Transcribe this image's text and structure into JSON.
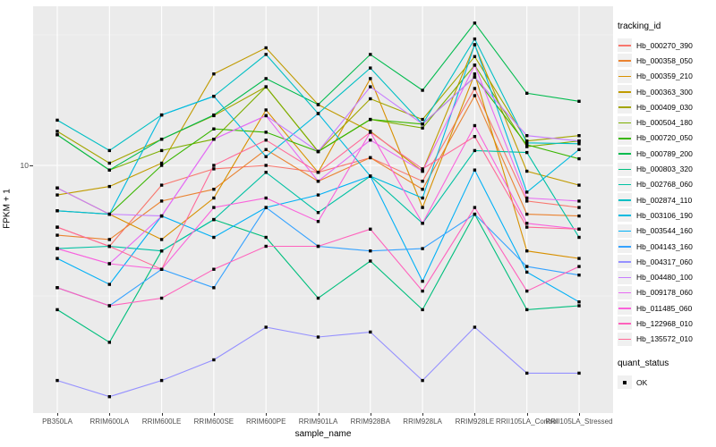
{
  "chart_data": {
    "type": "line",
    "title": "",
    "xlabel": "sample_name",
    "ylabel": "FPKM + 1",
    "y_scale": "log10",
    "ylim": [
      0.87,
      45
    ],
    "y_tick_values": [
      10
    ],
    "y_tick_labels": [
      "10"
    ],
    "y_minor_tick_values": [
      3.162,
      31.62
    ],
    "grid": "on",
    "panel_bg": "#EBEBEB",
    "grid_color": "#FFFFFF",
    "marker": {
      "shape": "square",
      "color": "#000000",
      "size": 3.4
    },
    "legend_position": "right",
    "categories": [
      "PB350LA",
      "RRIM600LA",
      "RRIM600LE",
      "RRIM600SE",
      "RRIM600PE",
      "RRIM901LA",
      "RRIM928BA",
      "RRIM928LA",
      "RRIM928LE",
      "RRII105LA_Control",
      "RRII105LA_Stressed"
    ],
    "legend_title": "tracking_id",
    "series": [
      {
        "name": "Hb_000270_390",
        "color": "#F8766D",
        "values": [
          5.8,
          4.9,
          8.4,
          9.7,
          10.0,
          9.4,
          10.7,
          8.7,
          19.7,
          7.3,
          6.9
        ]
      },
      {
        "name": "Hb_000358_050",
        "color": "#EA8331",
        "values": [
          5.4,
          5.2,
          7.3,
          8.1,
          11.5,
          8.7,
          10.7,
          8.1,
          18.5,
          6.5,
          6.4
        ]
      },
      {
        "name": "Hb_000359_210",
        "color": "#D89000",
        "values": [
          8.2,
          6.5,
          5.2,
          7.5,
          16.3,
          9.4,
          21.5,
          6.9,
          22.4,
          4.7,
          4.4
        ]
      },
      {
        "name": "Hb_000363_300",
        "color": "#C09B00",
        "values": [
          7.7,
          8.3,
          10.2,
          22.4,
          28.2,
          17.1,
          13.5,
          9.5,
          29.0,
          9.5,
          8.4
        ]
      },
      {
        "name": "Hb_000409_030",
        "color": "#A3A500",
        "values": [
          13.5,
          10.2,
          12.6,
          15.5,
          20.0,
          11.3,
          18.0,
          15.0,
          26.1,
          12.4,
          13.0
        ]
      },
      {
        "name": "Hb_000504_180",
        "color": "#7CAE00",
        "values": [
          13.1,
          9.6,
          11.4,
          12.6,
          20.0,
          11.3,
          15.0,
          13.9,
          24.2,
          11.8,
          12.4
        ]
      },
      {
        "name": "Hb_000720_050",
        "color": "#39B600",
        "values": [
          6.7,
          6.5,
          10.0,
          13.8,
          13.4,
          11.3,
          15.0,
          14.4,
          21.8,
          12.0,
          10.6
        ]
      },
      {
        "name": "Hb_000789_200",
        "color": "#00BB4E",
        "values": [
          13.1,
          9.6,
          12.6,
          15.6,
          21.5,
          17.1,
          26.6,
          19.4,
          35.1,
          18.9,
          17.6
        ]
      },
      {
        "name": "Hb_000803_320",
        "color": "#00BF7D",
        "values": [
          2.8,
          2.1,
          4.7,
          6.2,
          5.3,
          3.1,
          4.3,
          2.8,
          6.5,
          2.8,
          2.9
        ]
      },
      {
        "name": "Hb_002768_060",
        "color": "#00C1A3",
        "values": [
          4.8,
          4.9,
          4.7,
          6.2,
          9.4,
          6.6,
          9.1,
          6.0,
          11.4,
          11.2,
          5.3
        ]
      },
      {
        "name": "Hb_002874_110",
        "color": "#00BFC4",
        "values": [
          14.9,
          11.4,
          15.6,
          18.4,
          26.6,
          15.8,
          23.6,
          14.4,
          30.5,
          12.2,
          12.1
        ]
      },
      {
        "name": "Hb_003106_190",
        "color": "#00BAE0",
        "values": [
          6.7,
          6.5,
          15.6,
          18.4,
          10.8,
          15.8,
          9.1,
          7.5,
          29.0,
          7.9,
          11.5
        ]
      },
      {
        "name": "Hb_003544_160",
        "color": "#00B0F6",
        "values": [
          4.4,
          3.5,
          6.4,
          5.3,
          6.9,
          7.7,
          9.1,
          3.6,
          9.6,
          3.9,
          3.0
        ]
      },
      {
        "name": "Hb_004143_160",
        "color": "#35A2FF",
        "values": [
          3.4,
          2.9,
          4.0,
          3.4,
          6.9,
          4.9,
          4.7,
          4.8,
          6.5,
          4.1,
          3.8
        ]
      },
      {
        "name": "Hb_004317_060",
        "color": "#9590FF",
        "values": [
          1.5,
          1.3,
          1.5,
          1.8,
          2.4,
          2.2,
          2.3,
          1.5,
          2.4,
          1.6,
          1.6
        ]
      },
      {
        "name": "Hb_004480_100",
        "color": "#C77CFF",
        "values": [
          8.2,
          6.5,
          6.4,
          12.6,
          15.5,
          11.3,
          20.0,
          14.4,
          21.8,
          13.0,
          12.4
        ]
      },
      {
        "name": "Hb_009178_060",
        "color": "#E76BF3",
        "values": [
          4.8,
          4.2,
          6.4,
          12.6,
          15.5,
          8.7,
          12.5,
          9.5,
          24.2,
          7.5,
          7.3
        ]
      },
      {
        "name": "Hb_011485_060",
        "color": "#FA62DB",
        "values": [
          4.8,
          4.2,
          4.0,
          6.9,
          7.5,
          6.1,
          13.4,
          6.0,
          14.2,
          6.0,
          5.7
        ]
      },
      {
        "name": "Hb_122968_010",
        "color": "#FF62BC",
        "values": [
          3.4,
          2.9,
          3.1,
          4.0,
          4.9,
          4.9,
          5.7,
          3.3,
          6.9,
          3.3,
          4.1
        ]
      },
      {
        "name": "Hb_135572_010",
        "color": "#FF6A98",
        "values": [
          5.8,
          4.9,
          4.0,
          10.0,
          12.5,
          9.4,
          13.4,
          9.7,
          12.9,
          5.8,
          5.7
        ]
      }
    ],
    "legend2": {
      "title": "quant_status",
      "entries": [
        {
          "label": "OK",
          "marker": "square",
          "color": "#000000"
        }
      ]
    }
  }
}
